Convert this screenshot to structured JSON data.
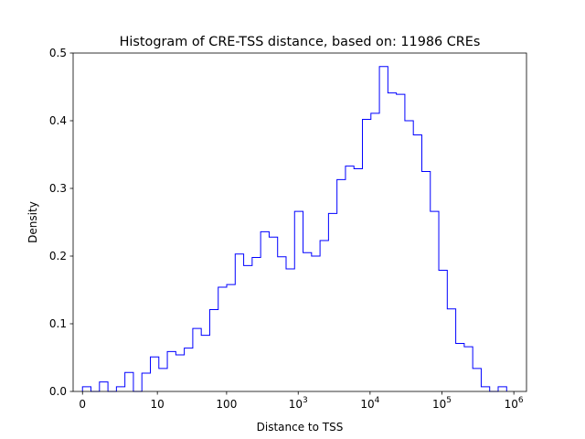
{
  "chart_data": {
    "type": "histogram",
    "title": "Histogram of CRE-TSS distance, based on: 11986 CREs",
    "xlabel": "Distance to TSS",
    "ylabel": "Density",
    "x_scale": "symlog",
    "xlim": [
      -0.35,
      1500000
    ],
    "ylim": [
      0,
      0.5
    ],
    "x_ticks": [
      {
        "value": 0,
        "label": "0"
      },
      {
        "value": 10,
        "label": "10"
      },
      {
        "value": 100,
        "label": "100"
      },
      {
        "value": 1000,
        "base": "10",
        "exp": "3"
      },
      {
        "value": 10000,
        "base": "10",
        "exp": "4"
      },
      {
        "value": 100000,
        "base": "10",
        "exp": "5"
      },
      {
        "value": 1000000,
        "base": "10",
        "exp": "6"
      }
    ],
    "y_ticks": [
      {
        "value": 0.0,
        "label": "0.0"
      },
      {
        "value": 0.1,
        "label": "0.1"
      },
      {
        "value": 0.2,
        "label": "0.2"
      },
      {
        "value": 0.3,
        "label": "0.3"
      },
      {
        "value": 0.4,
        "label": "0.4"
      },
      {
        "value": 0.5,
        "label": "0.5"
      }
    ],
    "bins_log_range": [
      0,
      5.9
    ],
    "densities": [
      0.007,
      0.0,
      0.014,
      0.0,
      0.007,
      0.028,
      0.0,
      0.027,
      0.051,
      0.034,
      0.059,
      0.054,
      0.064,
      0.093,
      0.083,
      0.121,
      0.154,
      0.158,
      0.203,
      0.186,
      0.198,
      0.236,
      0.228,
      0.199,
      0.181,
      0.266,
      0.205,
      0.2,
      0.223,
      0.263,
      0.313,
      0.333,
      0.329,
      0.402,
      0.411,
      0.48,
      0.441,
      0.439,
      0.4,
      0.379,
      0.325,
      0.266,
      0.179,
      0.122,
      0.071,
      0.066,
      0.034,
      0.007,
      0.0,
      0.007
    ],
    "line_color": "#0000ff",
    "grid": false,
    "legend": "none"
  }
}
